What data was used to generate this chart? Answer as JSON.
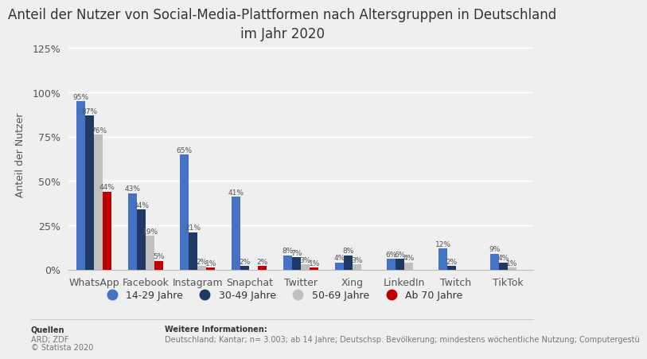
{
  "title": "Anteil der Nutzer von Social-Media-Plattformen nach Altersgruppen in Deutschland\nim Jahr 2020",
  "ylabel": "Anteil der Nutzer",
  "categories": [
    "WhatsApp",
    "Facebook",
    "Instagram",
    "Snapchat",
    "Twitter",
    "Xing",
    "LinkedIn",
    "Twitch",
    "TikTok"
  ],
  "series": {
    "14-29 Jahre": [
      95,
      43,
      65,
      41,
      8,
      4,
      6,
      12,
      9
    ],
    "30-49 Jahre": [
      87,
      34,
      21,
      2,
      7,
      8,
      6,
      2,
      4
    ],
    "50-69 Jahre": [
      76,
      19,
      2,
      0,
      3,
      3,
      4,
      0,
      1
    ],
    "Ab 70 Jahre": [
      44,
      5,
      1,
      2,
      1,
      0,
      0,
      0,
      0
    ]
  },
  "colors": {
    "14-29 Jahre": "#4472C4",
    "30-49 Jahre": "#1F3864",
    "50-69 Jahre": "#BFBFBF",
    "Ab 70 Jahre": "#C00000"
  },
  "legend_labels": [
    "14-29 Jahre",
    "30-49 Jahre",
    "50-69 Jahre",
    "Ab 70 Jahre"
  ],
  "yticks": [
    0,
    25,
    50,
    75,
    100,
    125
  ],
  "yticklabels": [
    "0%",
    "25%",
    "50%",
    "75%",
    "100%",
    "125%"
  ],
  "ylim": [
    0,
    130
  ],
  "background_color": "#efefef",
  "plot_background": "#efefef",
  "title_fontsize": 12,
  "bar_width": 0.17,
  "label_fontsize": 6.5,
  "footer_left_bold": "Quellen",
  "footer_left": "ARD; ZDF\n© Statista 2020",
  "footer_right_bold": "Weitere Informationen:",
  "footer_right": "Deutschland; Kantar; n= 3.003; ab 14 Jahre; Deutschsp. Bevölkerung; mindestens wöchentliche Nutzung; Computergestü"
}
